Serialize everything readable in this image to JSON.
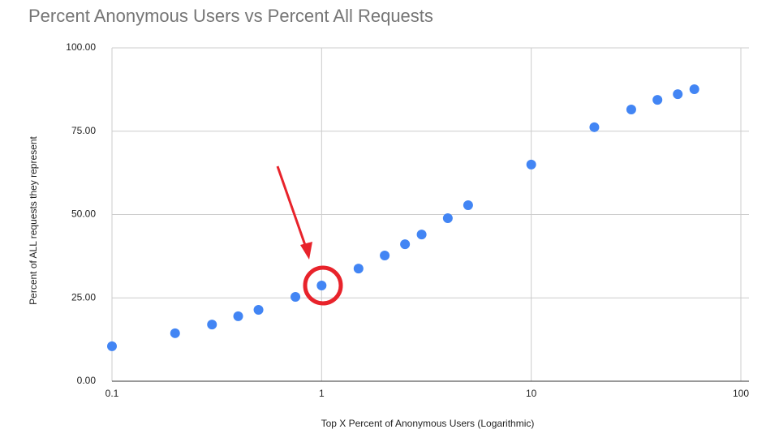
{
  "chart_data": {
    "type": "scatter",
    "title": "Percent Anonymous Users vs Percent All Requests",
    "x_label": "Top X Percent of Anonymous Users (Logarithmic)",
    "y_label": "Percent of ALL requests they represent",
    "x_scale": "log",
    "grid": true,
    "xlim": [
      0.1,
      100
    ],
    "xticks": [
      0.1,
      1,
      10,
      100
    ],
    "ylim": [
      0,
      100
    ],
    "yticks": [
      {
        "value": 0,
        "label": "0.00"
      },
      {
        "value": 25,
        "label": "25.00"
      },
      {
        "value": 50,
        "label": "50.00"
      },
      {
        "value": 75,
        "label": "75.00"
      },
      {
        "value": 100,
        "label": "100.00"
      }
    ],
    "series": [
      {
        "color": "#4285f4",
        "x": [
          0.1,
          0.2,
          0.3,
          0.4,
          0.5,
          0.75,
          1,
          1.5,
          2,
          2.5,
          3,
          4,
          5,
          10,
          20,
          30,
          40,
          50,
          60
        ],
        "values": [
          10.5,
          14.4,
          17,
          19.5,
          21.4,
          25.3,
          28.7,
          33.8,
          37.7,
          41.1,
          44,
          48.9,
          52.8,
          65,
          76.2,
          81.5,
          84.4,
          86.1,
          87.6
        ]
      }
    ]
  }
}
